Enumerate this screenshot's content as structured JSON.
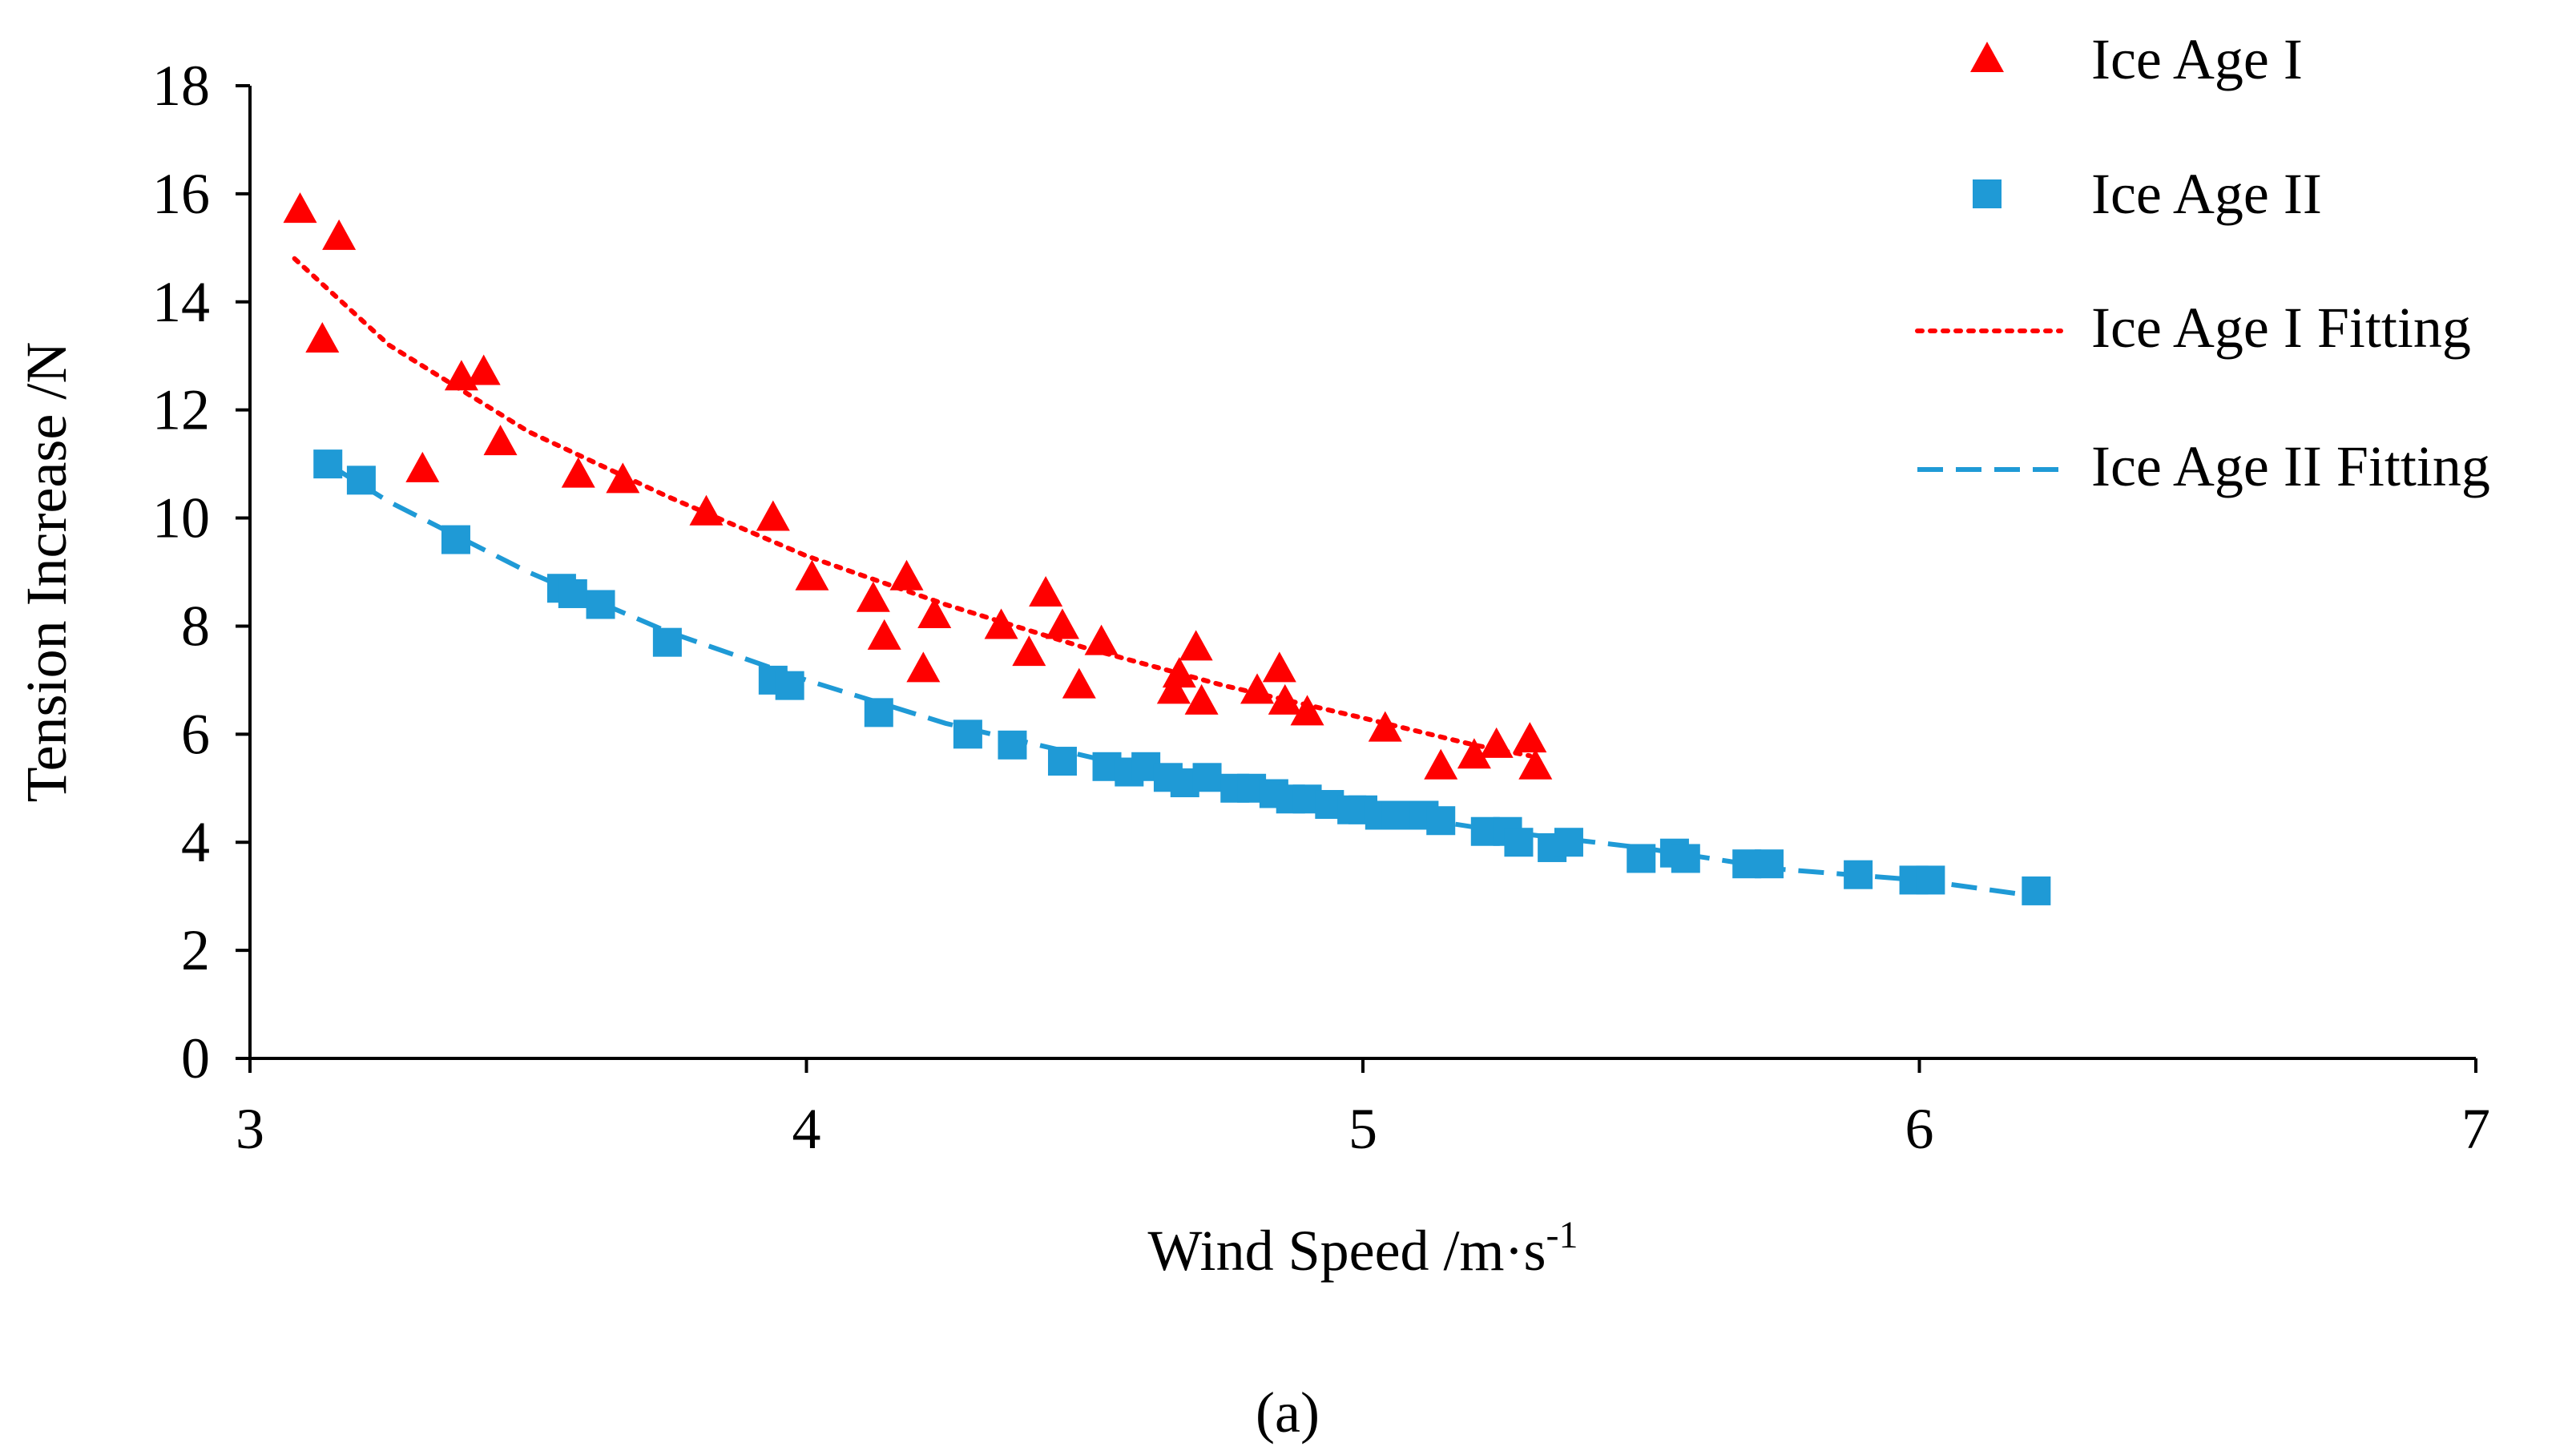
{
  "chart_data": {
    "type": "scatter",
    "title": "",
    "caption": "(a)",
    "xlabel": "Wind Speed /m·s",
    "xlabel_superscript": "-1",
    "ylabel": "Tension Increase /N",
    "xlim": [
      3,
      7
    ],
    "ylim": [
      0,
      18
    ],
    "xticks": [
      3,
      4,
      5,
      6,
      7
    ],
    "yticks": [
      0,
      2,
      4,
      6,
      8,
      10,
      12,
      14,
      16,
      18
    ],
    "grid": false,
    "legend_position": "top-right",
    "series": [
      {
        "name": "Ice Age I",
        "kind": "scatter",
        "marker": "triangle",
        "color": "#ff0000",
        "points": [
          [
            3.09,
            15.7
          ],
          [
            3.13,
            13.3
          ],
          [
            3.16,
            15.2
          ],
          [
            3.31,
            10.9
          ],
          [
            3.38,
            12.6
          ],
          [
            3.42,
            12.7
          ],
          [
            3.45,
            11.4
          ],
          [
            3.59,
            10.8
          ],
          [
            3.67,
            10.7
          ],
          [
            3.82,
            10.1
          ],
          [
            3.94,
            10.0
          ],
          [
            4.01,
            8.9
          ],
          [
            4.12,
            8.5
          ],
          [
            4.14,
            7.8
          ],
          [
            4.18,
            8.9
          ],
          [
            4.21,
            7.2
          ],
          [
            4.23,
            8.2
          ],
          [
            4.35,
            8.0
          ],
          [
            4.4,
            7.5
          ],
          [
            4.43,
            8.6
          ],
          [
            4.46,
            8.0
          ],
          [
            4.49,
            6.9
          ],
          [
            4.53,
            7.7
          ],
          [
            4.66,
            6.8
          ],
          [
            4.67,
            7.1
          ],
          [
            4.7,
            7.6
          ],
          [
            4.71,
            6.6
          ],
          [
            4.81,
            6.8
          ],
          [
            4.85,
            7.2
          ],
          [
            4.86,
            6.6
          ],
          [
            4.9,
            6.4
          ],
          [
            5.04,
            6.1
          ],
          [
            5.14,
            5.4
          ],
          [
            5.2,
            5.6
          ],
          [
            5.24,
            5.8
          ],
          [
            5.3,
            5.9
          ],
          [
            5.31,
            5.4
          ]
        ]
      },
      {
        "name": "Ice Age II",
        "kind": "scatter",
        "marker": "square",
        "color": "#1f9ad6",
        "points": [
          [
            3.14,
            11.0
          ],
          [
            3.2,
            10.7
          ],
          [
            3.37,
            9.6
          ],
          [
            3.56,
            8.7
          ],
          [
            3.58,
            8.6
          ],
          [
            3.63,
            8.4
          ],
          [
            3.75,
            7.7
          ],
          [
            3.94,
            7.0
          ],
          [
            3.97,
            6.9
          ],
          [
            4.13,
            6.4
          ],
          [
            4.29,
            6.0
          ],
          [
            4.37,
            5.8
          ],
          [
            4.46,
            5.5
          ],
          [
            4.54,
            5.4
          ],
          [
            4.58,
            5.3
          ],
          [
            4.61,
            5.4
          ],
          [
            4.65,
            5.2
          ],
          [
            4.68,
            5.1
          ],
          [
            4.72,
            5.2
          ],
          [
            4.77,
            5.0
          ],
          [
            4.8,
            5.0
          ],
          [
            4.84,
            4.9
          ],
          [
            4.87,
            4.8
          ],
          [
            4.9,
            4.8
          ],
          [
            4.94,
            4.7
          ],
          [
            4.98,
            4.6
          ],
          [
            5.0,
            4.6
          ],
          [
            5.03,
            4.5
          ],
          [
            5.06,
            4.5
          ],
          [
            5.11,
            4.5
          ],
          [
            5.14,
            4.4
          ],
          [
            5.22,
            4.2
          ],
          [
            5.26,
            4.2
          ],
          [
            5.28,
            4.0
          ],
          [
            5.34,
            3.9
          ],
          [
            5.37,
            4.0
          ],
          [
            5.5,
            3.7
          ],
          [
            5.56,
            3.8
          ],
          [
            5.58,
            3.7
          ],
          [
            5.69,
            3.6
          ],
          [
            5.73,
            3.6
          ],
          [
            5.89,
            3.4
          ],
          [
            5.99,
            3.3
          ],
          [
            6.02,
            3.3
          ],
          [
            6.21,
            3.1
          ]
        ]
      },
      {
        "name": "Ice Age I Fitting",
        "kind": "line",
        "dash": "dotted",
        "color": "#ff0000",
        "points": [
          [
            3.08,
            14.8
          ],
          [
            3.25,
            13.2
          ],
          [
            3.5,
            11.6
          ],
          [
            3.75,
            10.4
          ],
          [
            4.0,
            9.3
          ],
          [
            4.25,
            8.4
          ],
          [
            4.5,
            7.6
          ],
          [
            4.75,
            6.9
          ],
          [
            5.0,
            6.3
          ],
          [
            5.2,
            5.8
          ],
          [
            5.3,
            5.6
          ]
        ]
      },
      {
        "name": "Ice Age II Fitting",
        "kind": "line",
        "dash": "dashed",
        "color": "#1f9ad6",
        "points": [
          [
            3.14,
            11.0
          ],
          [
            3.25,
            10.3
          ],
          [
            3.5,
            9.0
          ],
          [
            3.75,
            7.9
          ],
          [
            4.0,
            7.0
          ],
          [
            4.25,
            6.2
          ],
          [
            4.5,
            5.6
          ],
          [
            4.75,
            5.0
          ],
          [
            5.0,
            4.6
          ],
          [
            5.25,
            4.2
          ],
          [
            5.5,
            3.9
          ],
          [
            5.75,
            3.5
          ],
          [
            6.0,
            3.3
          ],
          [
            6.21,
            3.0
          ]
        ]
      }
    ]
  }
}
